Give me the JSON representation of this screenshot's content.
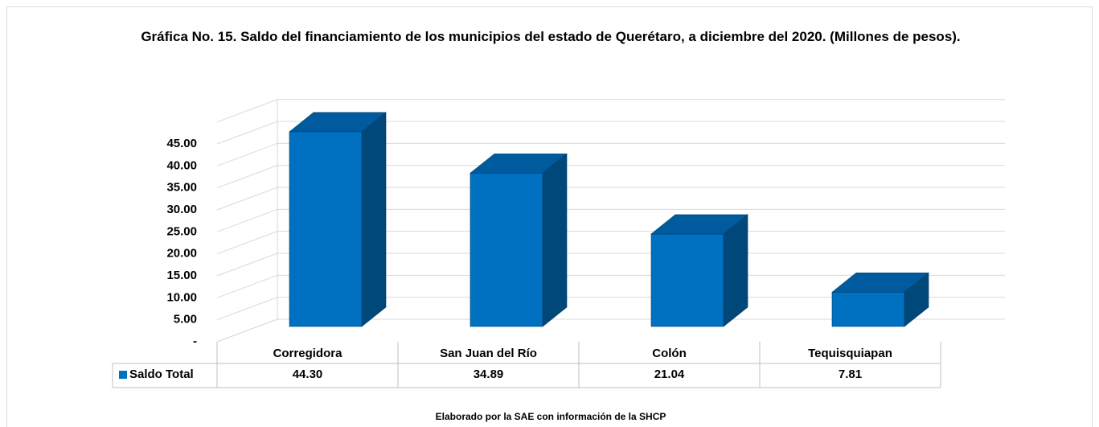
{
  "chart_data": {
    "type": "bar3d",
    "title": "Gráfica No. 15. Saldo del financiamiento de los municipios del estado de Querétaro, a diciembre del 2020. (Millones de pesos).",
    "categories": [
      "Corregidora",
      "San Juan del Río",
      "Colón",
      "Tequisquiapan"
    ],
    "series": [
      {
        "name": "Saldo Total",
        "color": "#0070c0",
        "values": [
          44.3,
          34.89,
          21.04,
          7.81
        ],
        "value_labels": [
          "44.30",
          "34.89",
          "21.04",
          "7.81"
        ]
      }
    ],
    "ylim": [
      0,
      50
    ],
    "yticks": [
      {
        "value": 0,
        "label": "-"
      },
      {
        "value": 5,
        "label": "5.00"
      },
      {
        "value": 10,
        "label": "10.00"
      },
      {
        "value": 15,
        "label": "15.00"
      },
      {
        "value": 20,
        "label": "20.00"
      },
      {
        "value": 25,
        "label": "25.00"
      },
      {
        "value": 30,
        "label": "30.00"
      },
      {
        "value": 35,
        "label": "35.00"
      },
      {
        "value": 40,
        "label": "40.00"
      },
      {
        "value": 45,
        "label": "45.00"
      }
    ],
    "grid": true,
    "source": "Elaborado por la SAE con información de  la SHCP"
  }
}
